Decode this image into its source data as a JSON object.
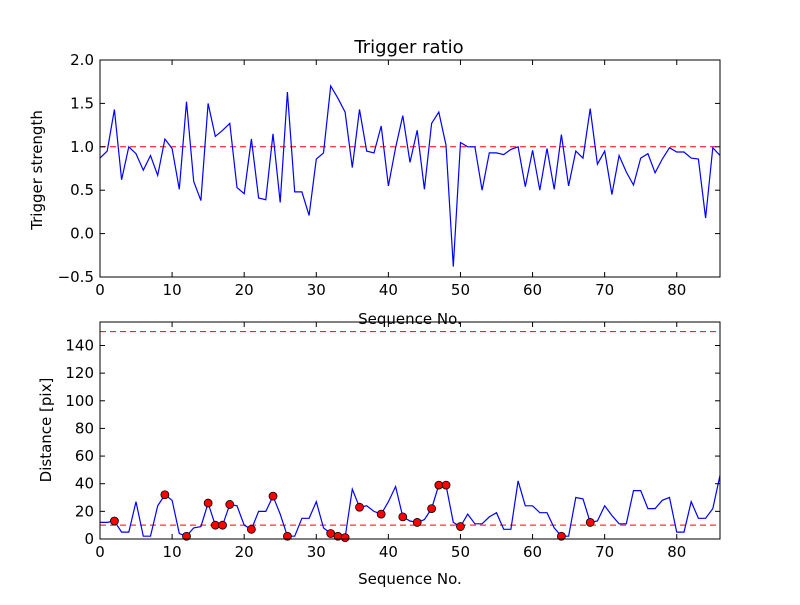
{
  "chart_data": [
    {
      "type": "line",
      "title": "Trigger ratio",
      "xlabel": "Sequence No.",
      "ylabel": "Trigger strength",
      "xlim": [
        0,
        86
      ],
      "ylim": [
        -0.5,
        2.0
      ],
      "xticks": [
        0,
        10,
        20,
        30,
        40,
        50,
        60,
        70,
        80
      ],
      "yticks": [
        -0.5,
        0.0,
        0.5,
        1.0,
        1.5,
        2.0
      ],
      "xtick_labels": [
        "0",
        "10",
        "20",
        "30",
        "40",
        "50",
        "60",
        "70",
        "80"
      ],
      "ytick_labels": [
        "−0.5",
        "0.0",
        "0.5",
        "1.0",
        "1.5",
        "2.0"
      ],
      "threshold": 1.0,
      "threshold_color": "#ff0000",
      "line_color": "#0000ff",
      "x": [
        0,
        1,
        2,
        3,
        4,
        5,
        6,
        7,
        8,
        9,
        10,
        11,
        12,
        13,
        14,
        15,
        16,
        17,
        18,
        19,
        20,
        21,
        22,
        23,
        24,
        25,
        26,
        27,
        28,
        29,
        30,
        31,
        32,
        33,
        34,
        35,
        36,
        37,
        38,
        39,
        40,
        41,
        42,
        43,
        44,
        45,
        46,
        47,
        48,
        49,
        50,
        51,
        52,
        53,
        54,
        55,
        56,
        57,
        58,
        59,
        60,
        61,
        62,
        63,
        64,
        65,
        66,
        67,
        68,
        69,
        70,
        71,
        72,
        73,
        74,
        75,
        76,
        77,
        78,
        79,
        80,
        81,
        82,
        83,
        84,
        85,
        86
      ],
      "values": [
        0.87,
        0.95,
        1.43,
        0.62,
        1.0,
        0.92,
        0.73,
        0.9,
        0.67,
        1.09,
        0.98,
        0.51,
        1.52,
        0.6,
        0.38,
        1.5,
        1.12,
        1.19,
        1.27,
        0.53,
        0.46,
        1.09,
        0.41,
        0.39,
        1.15,
        0.36,
        1.63,
        0.48,
        0.48,
        0.21,
        0.86,
        0.93,
        1.7,
        1.56,
        1.4,
        0.76,
        1.43,
        0.95,
        0.93,
        1.24,
        0.55,
        0.99,
        1.36,
        0.82,
        1.19,
        0.51,
        1.27,
        1.4,
        1.02,
        -0.38,
        1.05,
        1.0,
        1.0,
        0.5,
        0.93,
        0.93,
        0.91,
        0.97,
        1.0,
        0.54,
        0.96,
        0.5,
        0.98,
        0.51,
        1.14,
        0.55,
        0.95,
        0.87,
        1.44,
        0.8,
        0.95,
        0.45,
        0.9,
        0.71,
        0.56,
        0.87,
        0.92,
        0.7,
        0.86,
        0.99,
        0.94,
        0.94,
        0.87,
        0.86,
        0.18,
        0.99,
        0.9
      ]
    },
    {
      "type": "line",
      "title": "",
      "xlabel": "Sequence No.",
      "ylabel": "Distance [pix]",
      "xlim": [
        0,
        86
      ],
      "ylim": [
        0,
        157
      ],
      "xticks": [
        0,
        10,
        20,
        30,
        40,
        50,
        60,
        70,
        80
      ],
      "yticks": [
        0,
        20,
        40,
        60,
        80,
        100,
        120,
        140
      ],
      "xtick_labels": [
        "0",
        "10",
        "20",
        "30",
        "40",
        "50",
        "60",
        "70",
        "80"
      ],
      "ytick_labels": [
        "0",
        "20",
        "40",
        "60",
        "80",
        "100",
        "120",
        "140"
      ],
      "thresholds": [
        10,
        150
      ],
      "threshold_color": "#ff0000",
      "line_color": "#0000ff",
      "marker_color": "#ff0000",
      "x": [
        0,
        1,
        2,
        3,
        4,
        5,
        6,
        7,
        8,
        9,
        10,
        11,
        12,
        13,
        14,
        15,
        16,
        17,
        18,
        19,
        20,
        21,
        22,
        23,
        24,
        25,
        26,
        27,
        28,
        29,
        30,
        31,
        32,
        33,
        34,
        35,
        36,
        37,
        38,
        39,
        40,
        41,
        42,
        43,
        44,
        45,
        46,
        47,
        48,
        49,
        50,
        51,
        52,
        53,
        54,
        55,
        56,
        57,
        58,
        59,
        60,
        61,
        62,
        63,
        64,
        65,
        66,
        67,
        68,
        69,
        70,
        71,
        72,
        73,
        74,
        75,
        76,
        77,
        78,
        79,
        80,
        81,
        82,
        83,
        84,
        85,
        86
      ],
      "values": [
        12,
        12,
        13,
        5,
        5,
        27,
        2,
        2,
        24,
        32,
        28,
        4,
        2,
        8,
        9,
        26,
        10,
        10,
        25,
        24,
        10,
        7,
        20,
        20,
        31,
        18,
        2,
        2,
        15,
        15,
        27,
        8,
        4,
        2,
        1,
        36,
        23,
        24,
        20,
        18,
        27,
        38,
        16,
        13,
        12,
        14,
        22,
        39,
        39,
        12,
        9,
        18,
        11,
        11,
        16,
        19,
        7,
        7,
        42,
        24,
        24,
        19,
        19,
        8,
        2,
        2,
        30,
        29,
        12,
        13,
        24,
        17,
        11,
        11,
        35,
        35,
        22,
        22,
        28,
        30,
        5,
        5,
        27,
        15,
        15,
        22,
        46
      ],
      "markers": [
        {
          "x": 2,
          "y": 13
        },
        {
          "x": 9,
          "y": 32
        },
        {
          "x": 12,
          "y": 2
        },
        {
          "x": 15,
          "y": 26
        },
        {
          "x": 16,
          "y": 10
        },
        {
          "x": 17,
          "y": 10
        },
        {
          "x": 18,
          "y": 25
        },
        {
          "x": 21,
          "y": 7
        },
        {
          "x": 24,
          "y": 31
        },
        {
          "x": 26,
          "y": 2
        },
        {
          "x": 32,
          "y": 4
        },
        {
          "x": 33,
          "y": 2
        },
        {
          "x": 34,
          "y": 1
        },
        {
          "x": 36,
          "y": 23
        },
        {
          "x": 39,
          "y": 18
        },
        {
          "x": 42,
          "y": 16
        },
        {
          "x": 44,
          "y": 12
        },
        {
          "x": 46,
          "y": 22
        },
        {
          "x": 47,
          "y": 39
        },
        {
          "x": 48,
          "y": 39
        },
        {
          "x": 50,
          "y": 9
        },
        {
          "x": 64,
          "y": 2
        },
        {
          "x": 68,
          "y": 12
        }
      ]
    }
  ]
}
